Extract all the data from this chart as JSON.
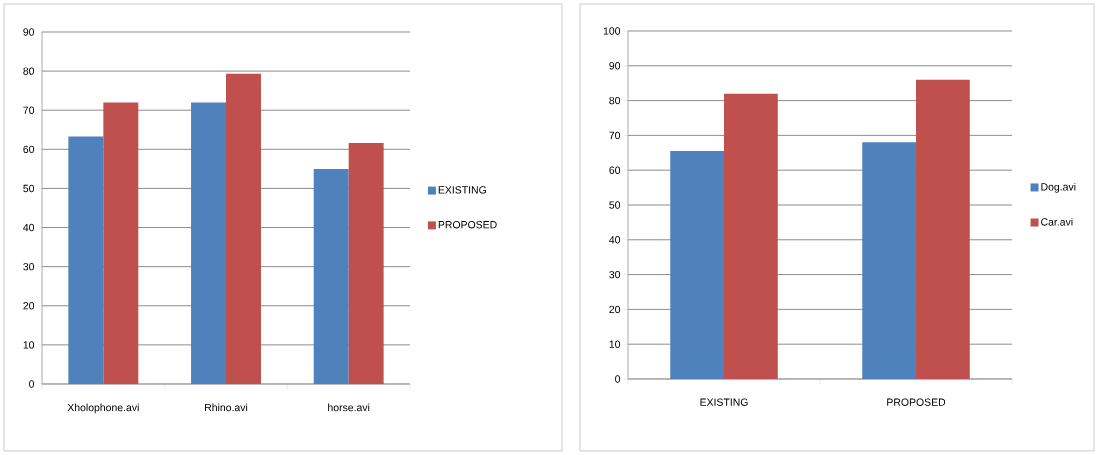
{
  "chart_data": [
    {
      "type": "bar",
      "categories": [
        "Xholophone.avi",
        "Rhino.avi",
        "horse.avi"
      ],
      "series": [
        {
          "name": "EXISTING",
          "color": "#4f81bd",
          "values": [
            63.3,
            72,
            55
          ]
        },
        {
          "name": "PROPOSED",
          "color": "#c0504d",
          "values": [
            72,
            79.3,
            61.6
          ]
        }
      ],
      "ylim": [
        0,
        90
      ],
      "yticks": [
        0,
        10,
        20,
        30,
        40,
        50,
        60,
        70,
        80,
        90
      ],
      "grid": "y",
      "legend": "right"
    },
    {
      "type": "bar",
      "categories": [
        "EXISTING",
        "PROPOSED"
      ],
      "series": [
        {
          "name": "Dog.avi",
          "color": "#4f81bd",
          "values": [
            65.5,
            68
          ]
        },
        {
          "name": "Car.avi",
          "color": "#c0504d",
          "values": [
            82,
            86
          ]
        }
      ],
      "ylim": [
        0,
        100
      ],
      "yticks": [
        0,
        10,
        20,
        30,
        40,
        50,
        60,
        70,
        80,
        90,
        100
      ],
      "grid": "y",
      "legend": "right"
    }
  ]
}
